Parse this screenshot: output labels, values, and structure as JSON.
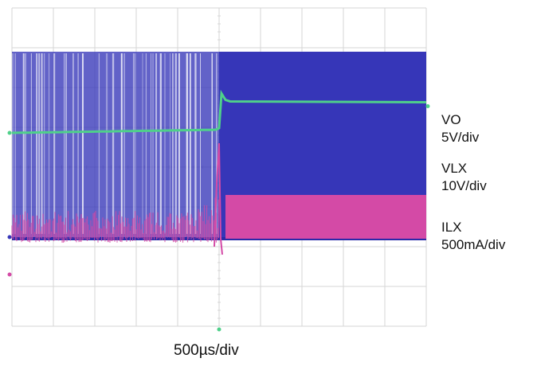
{
  "chart_data": {
    "type": "line",
    "title": "",
    "grid": true,
    "divisions": {
      "x": 10,
      "y": 8
    },
    "trigger_division": 5,
    "timebase": "500µs/div",
    "channels": [
      {
        "name": "VO",
        "scale": "5V/div",
        "color": "#4fd08a",
        "before_trigger_division": 4.9,
        "after_trigger_division": 5.65
      },
      {
        "name": "VLX",
        "scale": "10V/div",
        "color": "#3636b8",
        "low_division": 2.2,
        "high_division": 6.9
      },
      {
        "name": "ILX",
        "scale": "500mA/div",
        "color": "#d44aa6",
        "before_trigger_low_division": 2.1,
        "before_trigger_high_division": 2.9,
        "after_trigger_low_division": 2.2,
        "after_trigger_high_division": 3.3
      }
    ],
    "colors": {
      "grid": "#d6d6d6",
      "background": "#ffffff"
    }
  }
}
